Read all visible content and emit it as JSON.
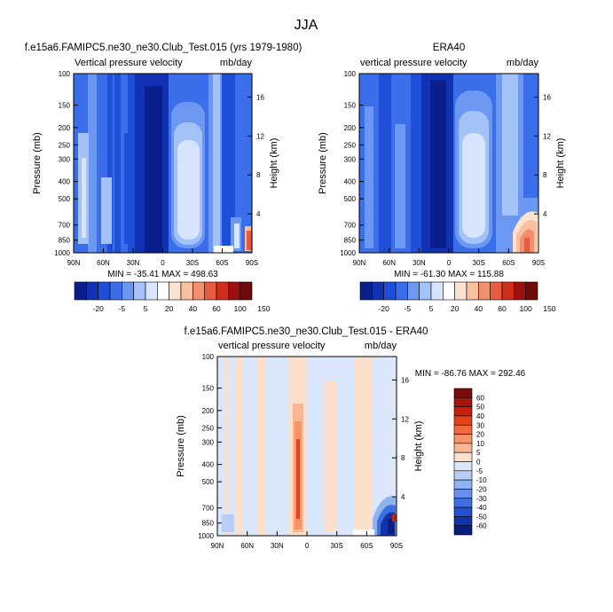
{
  "page_title": "JJA",
  "chart_data": [
    {
      "type": "heatmap",
      "title": "f.e15a6.FAMIPC5.ne30_ne30.Club_Test.015 (yrs 1979-1980)",
      "subtitle_left": "Vertical pressure velocity",
      "subtitle_right": "mb/day",
      "ylabel": "Pressure (mb)",
      "ylabel_right": "Height (km)",
      "x_ticks": [
        "90N",
        "60N",
        "30N",
        "0",
        "30S",
        "60S",
        "90S"
      ],
      "y_ticks": [
        "100",
        "150",
        "200",
        "250",
        "300",
        "400",
        "500",
        "700",
        "850",
        "1000"
      ],
      "y_ticks_right": [
        "16",
        "12",
        "8",
        "4"
      ],
      "stats": "MIN = -35.41   MAX = 498.63",
      "colorbar_labels": [
        "-20",
        "-5",
        "5",
        "20",
        "40",
        "60",
        "100",
        "150"
      ]
    },
    {
      "type": "heatmap",
      "title": "ERA40",
      "subtitle_left": "vertical pressure velocity",
      "subtitle_right": "mb/day",
      "ylabel": "Pressure (mb)",
      "ylabel_right": "Height (km)",
      "x_ticks": [
        "90N",
        "60N",
        "30N",
        "0",
        "30S",
        "60S",
        "90S"
      ],
      "y_ticks": [
        "100",
        "150",
        "200",
        "250",
        "300",
        "400",
        "500",
        "700",
        "850",
        "1000"
      ],
      "y_ticks_right": [
        "16",
        "12",
        "8",
        "4"
      ],
      "stats": "MIN = -61.30   MAX = 115.88",
      "colorbar_labels": [
        "-20",
        "-5",
        "5",
        "20",
        "40",
        "60",
        "100",
        "150"
      ]
    },
    {
      "type": "heatmap",
      "title": "f.e15a6.FAMIPC5.ne30_ne30.Club_Test.015 - ERA40",
      "subtitle_left": "vertical pressure velocity",
      "subtitle_right": "mb/day",
      "ylabel": "Pressure (mb)",
      "ylabel_right": "Height (km)",
      "x_ticks": [
        "90N",
        "60N",
        "30N",
        "0",
        "30S",
        "60S",
        "90S"
      ],
      "y_ticks": [
        "100",
        "150",
        "200",
        "250",
        "300",
        "400",
        "500",
        "700",
        "850",
        "1000"
      ],
      "y_ticks_right": [
        "16",
        "12",
        "8",
        "4"
      ],
      "stats": "MIN = -86.76   MAX = 292.46",
      "colorbar_labels": [
        "60",
        "50",
        "40",
        "30",
        "20",
        "10",
        "5",
        "0",
        "-5",
        "-10",
        "-20",
        "-30",
        "-40",
        "-50",
        "-60"
      ]
    }
  ],
  "colors": {
    "field_palette": [
      "#0a1f8c",
      "#1232b4",
      "#1f4fd8",
      "#3a6eea",
      "#6c98f2",
      "#a3c2f7",
      "#d6e5fb",
      "#ffffff",
      "#fde2d2",
      "#f9bfa1",
      "#f2906e",
      "#e75c3e",
      "#cf2f1c",
      "#9e1010",
      "#6e0a0a"
    ],
    "diff_positive": [
      "#7a0c0c",
      "#a31410",
      "#c9200e",
      "#e3421a",
      "#f06a3e",
      "#f7936a",
      "#fbb794",
      "#fde0cc"
    ],
    "diff_negative": [
      "#dbe7fb",
      "#b7cff6",
      "#8fb2f1",
      "#6591ea",
      "#3d6fe0",
      "#2250cf",
      "#1333aa",
      "#0a1d7c"
    ]
  }
}
